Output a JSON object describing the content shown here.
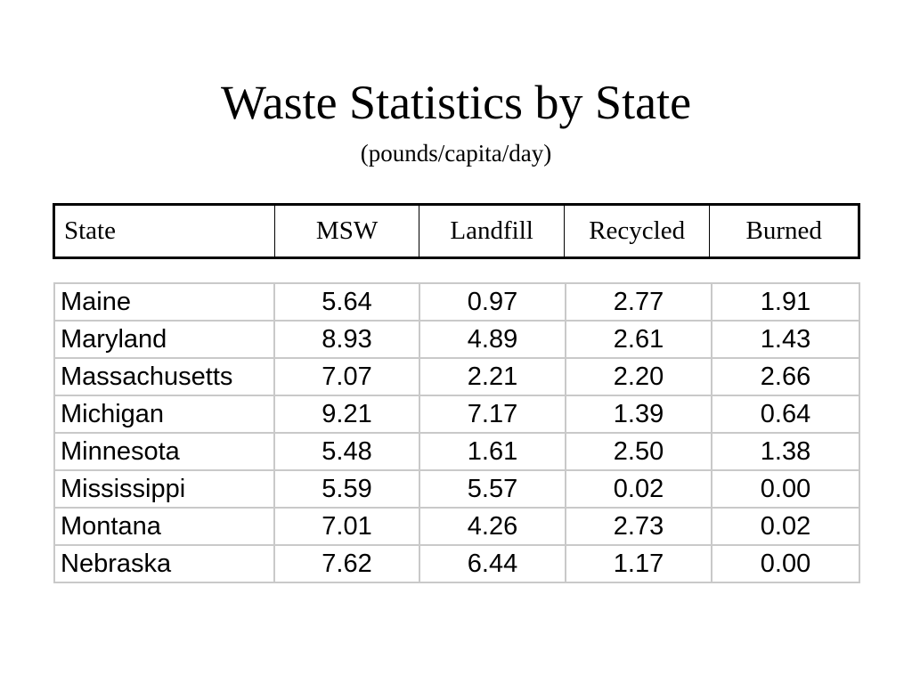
{
  "slide": {
    "title": "Waste Statistics by State",
    "subtitle": "(pounds/capita/day)"
  },
  "table": {
    "headers": [
      "State",
      "MSW",
      "Landfill",
      "Recycled",
      "Burned"
    ],
    "rows": [
      [
        "Maine",
        "5.64",
        "0.97",
        "2.77",
        "1.91"
      ],
      [
        "Maryland",
        "8.93",
        "4.89",
        "2.61",
        "1.43"
      ],
      [
        "Massachusetts",
        "7.07",
        "2.21",
        "2.20",
        "2.66"
      ],
      [
        "Michigan",
        "9.21",
        "7.17",
        "1.39",
        "0.64"
      ],
      [
        "Minnesota",
        "5.48",
        "1.61",
        "2.50",
        "1.38"
      ],
      [
        "Mississippi",
        "5.59",
        "5.57",
        "0.02",
        "0.00"
      ],
      [
        "Montana",
        "7.01",
        "4.26",
        "2.73",
        "0.02"
      ],
      [
        "Nebraska",
        "7.62",
        "6.44",
        "1.17",
        "0.00"
      ]
    ]
  }
}
